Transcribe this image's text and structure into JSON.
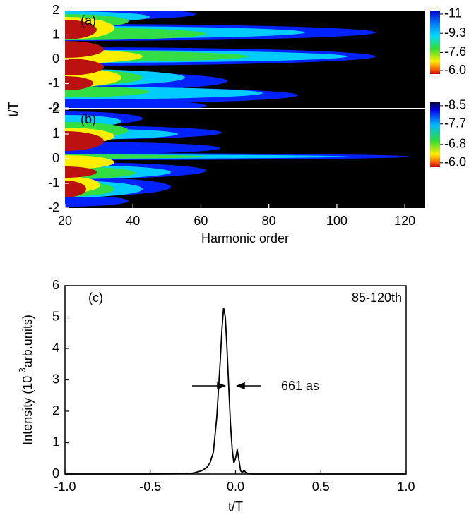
{
  "chart_data": [
    {
      "type": "heatmap",
      "panel_label": "(a)",
      "y_label": "t/T",
      "xlim": [
        20,
        126
      ],
      "ylim": [
        -2,
        2
      ],
      "yticks": [
        -2,
        -1,
        0,
        1,
        2
      ],
      "clim": [
        -11.31,
        -5.69
      ],
      "cticks": [
        -11,
        -9.3,
        -7.6,
        {
          "value": -6,
          "label": "-6.0"
        }
      ]
    },
    {
      "type": "heatmap",
      "panel_label": "(b)",
      "x_label": "Harmonic order",
      "xlim": [
        20,
        126
      ],
      "xticks": [
        20,
        40,
        60,
        80,
        100,
        120
      ],
      "ylim": [
        -2,
        2
      ],
      "yticks": [
        -2,
        -1,
        0,
        1,
        2
      ],
      "clim": [
        -8.65,
        -5.81
      ],
      "cticks": [
        -8.5,
        -7.7,
        -6.8,
        {
          "value": -6,
          "label": "-6.0"
        }
      ]
    },
    {
      "type": "line",
      "panel_label": "(c)",
      "annotation": "85-120th",
      "width_label": "661 as",
      "x_label": "t/T",
      "y_label": {
        "text": "Intensity (10",
        "sup": "-3",
        "tail": "arb.units)"
      },
      "color": "#000000",
      "xlim": [
        -1,
        1
      ],
      "xticks": [
        {
          "value": -1,
          "label": "-1.0"
        },
        {
          "value": -0.5,
          "label": "-0.5"
        },
        {
          "value": 0,
          "label": "0.0"
        },
        {
          "value": 0.5,
          "label": "0.5"
        },
        {
          "value": 1,
          "label": "1.0"
        }
      ],
      "ylim": [
        0,
        6
      ],
      "yticks": [
        0,
        1,
        2,
        3,
        4,
        5,
        6
      ],
      "x": [
        -1,
        -0.5,
        -0.3,
        -0.25,
        -0.2,
        -0.17,
        -0.15,
        -0.13,
        -0.11,
        -0.09,
        -0.08,
        -0.07,
        -0.06,
        -0.05,
        -0.04,
        -0.03,
        -0.02,
        -0.01,
        0,
        0.01,
        0.02,
        0.03,
        0.04,
        0.05,
        0.06,
        0.08,
        0.1,
        0.3,
        0.6,
        1
      ],
      "values": [
        0,
        0,
        0.01,
        0.03,
        0.1,
        0.2,
        0.35,
        0.7,
        1.8,
        3.6,
        4.6,
        5.3,
        5.0,
        4.0,
        2.8,
        1.6,
        0.8,
        0.35,
        0.5,
        0.78,
        0.45,
        0.1,
        0.05,
        0.12,
        0.05,
        0.01,
        0,
        0,
        0,
        0
      ]
    }
  ]
}
